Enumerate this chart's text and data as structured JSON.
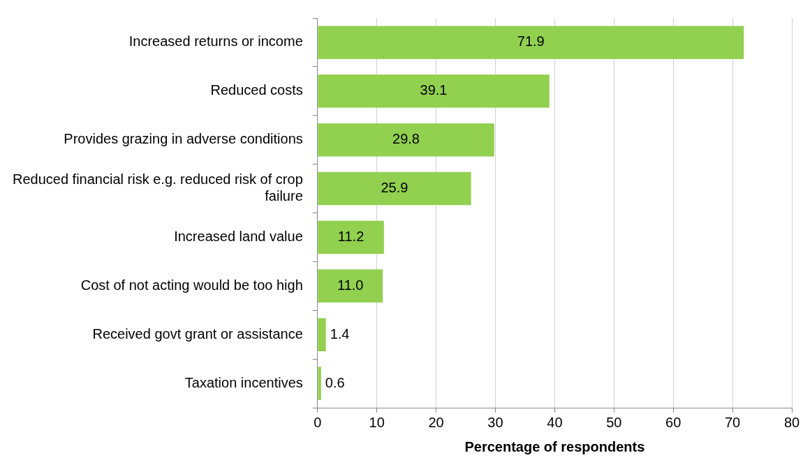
{
  "chart_data": {
    "type": "bar",
    "orientation": "horizontal",
    "xlabel": "Percentage of respondents",
    "categories": [
      "Increased returns or income",
      "Reduced costs",
      "Provides grazing in adverse conditions",
      "Reduced financial risk e.g. reduced risk of crop failure",
      "Increased land value",
      "Cost of not acting would be too high",
      "Received govt grant or assistance",
      "Taxation incentives"
    ],
    "values": [
      71.9,
      39.1,
      29.8,
      25.9,
      11.2,
      11.0,
      1.4,
      0.6
    ],
    "value_labels": [
      "71.9",
      "39.1",
      "29.8",
      "25.9",
      "11.2",
      "11.0",
      "1.4",
      "0.6"
    ],
    "color": "#92d050",
    "xlim": [
      0,
      80
    ],
    "xticks": [
      0,
      10,
      20,
      30,
      40,
      50,
      60,
      70,
      80
    ],
    "grid": "x",
    "legend": false
  }
}
